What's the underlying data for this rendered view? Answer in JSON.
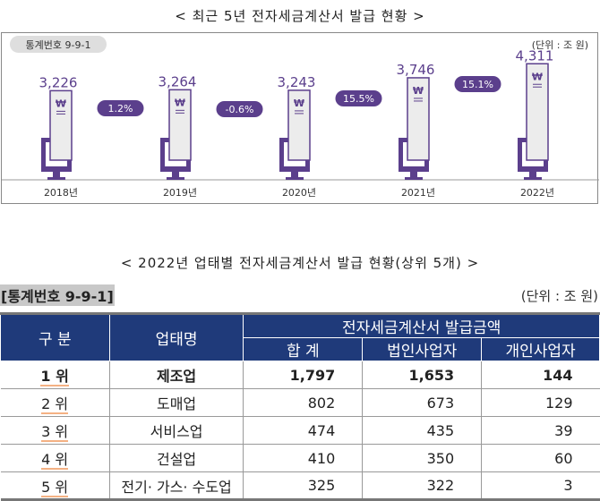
{
  "chart_data": {
    "type": "bar",
    "title": "< 최근 5년 전자세금계산서 발급 현황 >",
    "badge": "통계번호 9-9-1",
    "unit": "(단위 : 조 원)",
    "categories": [
      "2018년",
      "2019년",
      "2020년",
      "2021년",
      "2022년"
    ],
    "values": [
      3226,
      3264,
      3243,
      3746,
      4311
    ],
    "value_labels": [
      "3,226",
      "3,264",
      "3,243",
      "3,746",
      "4,311"
    ],
    "growth": [
      "1.2%",
      "-0.6%",
      "15.5%",
      "15.1%"
    ],
    "ylim": [
      0,
      4500
    ],
    "icon": "won-receipt-monitor-icon",
    "colors": {
      "accent": "#5b3f8c",
      "receipt": "#ececec"
    }
  },
  "table": {
    "title": "< 2022년 업태별 전자세금계산서 발급 현황(상위 5개) >",
    "stat_no": "[통계번호 9-9-1]",
    "unit": "(단위 : 조 원)",
    "headers": {
      "rank": "구 분",
      "industry": "업태명",
      "group": "전자세금계산서 발급금액",
      "total": "합 계",
      "corp": "법인사업자",
      "indiv": "개인사업자"
    },
    "rows": [
      {
        "rank": "1 위",
        "industry": "제조업",
        "total": "1,797",
        "corp": "1,653",
        "indiv": "144"
      },
      {
        "rank": "2 위",
        "industry": "도매업",
        "total": "802",
        "corp": "673",
        "indiv": "129"
      },
      {
        "rank": "3 위",
        "industry": "서비스업",
        "total": "474",
        "corp": "435",
        "indiv": "39"
      },
      {
        "rank": "4 위",
        "industry": "건설업",
        "total": "410",
        "corp": "350",
        "indiv": "60"
      },
      {
        "rank": "5 위",
        "industry": "전기· 가스· 수도업",
        "total": "325",
        "corp": "322",
        "indiv": "3"
      }
    ]
  }
}
